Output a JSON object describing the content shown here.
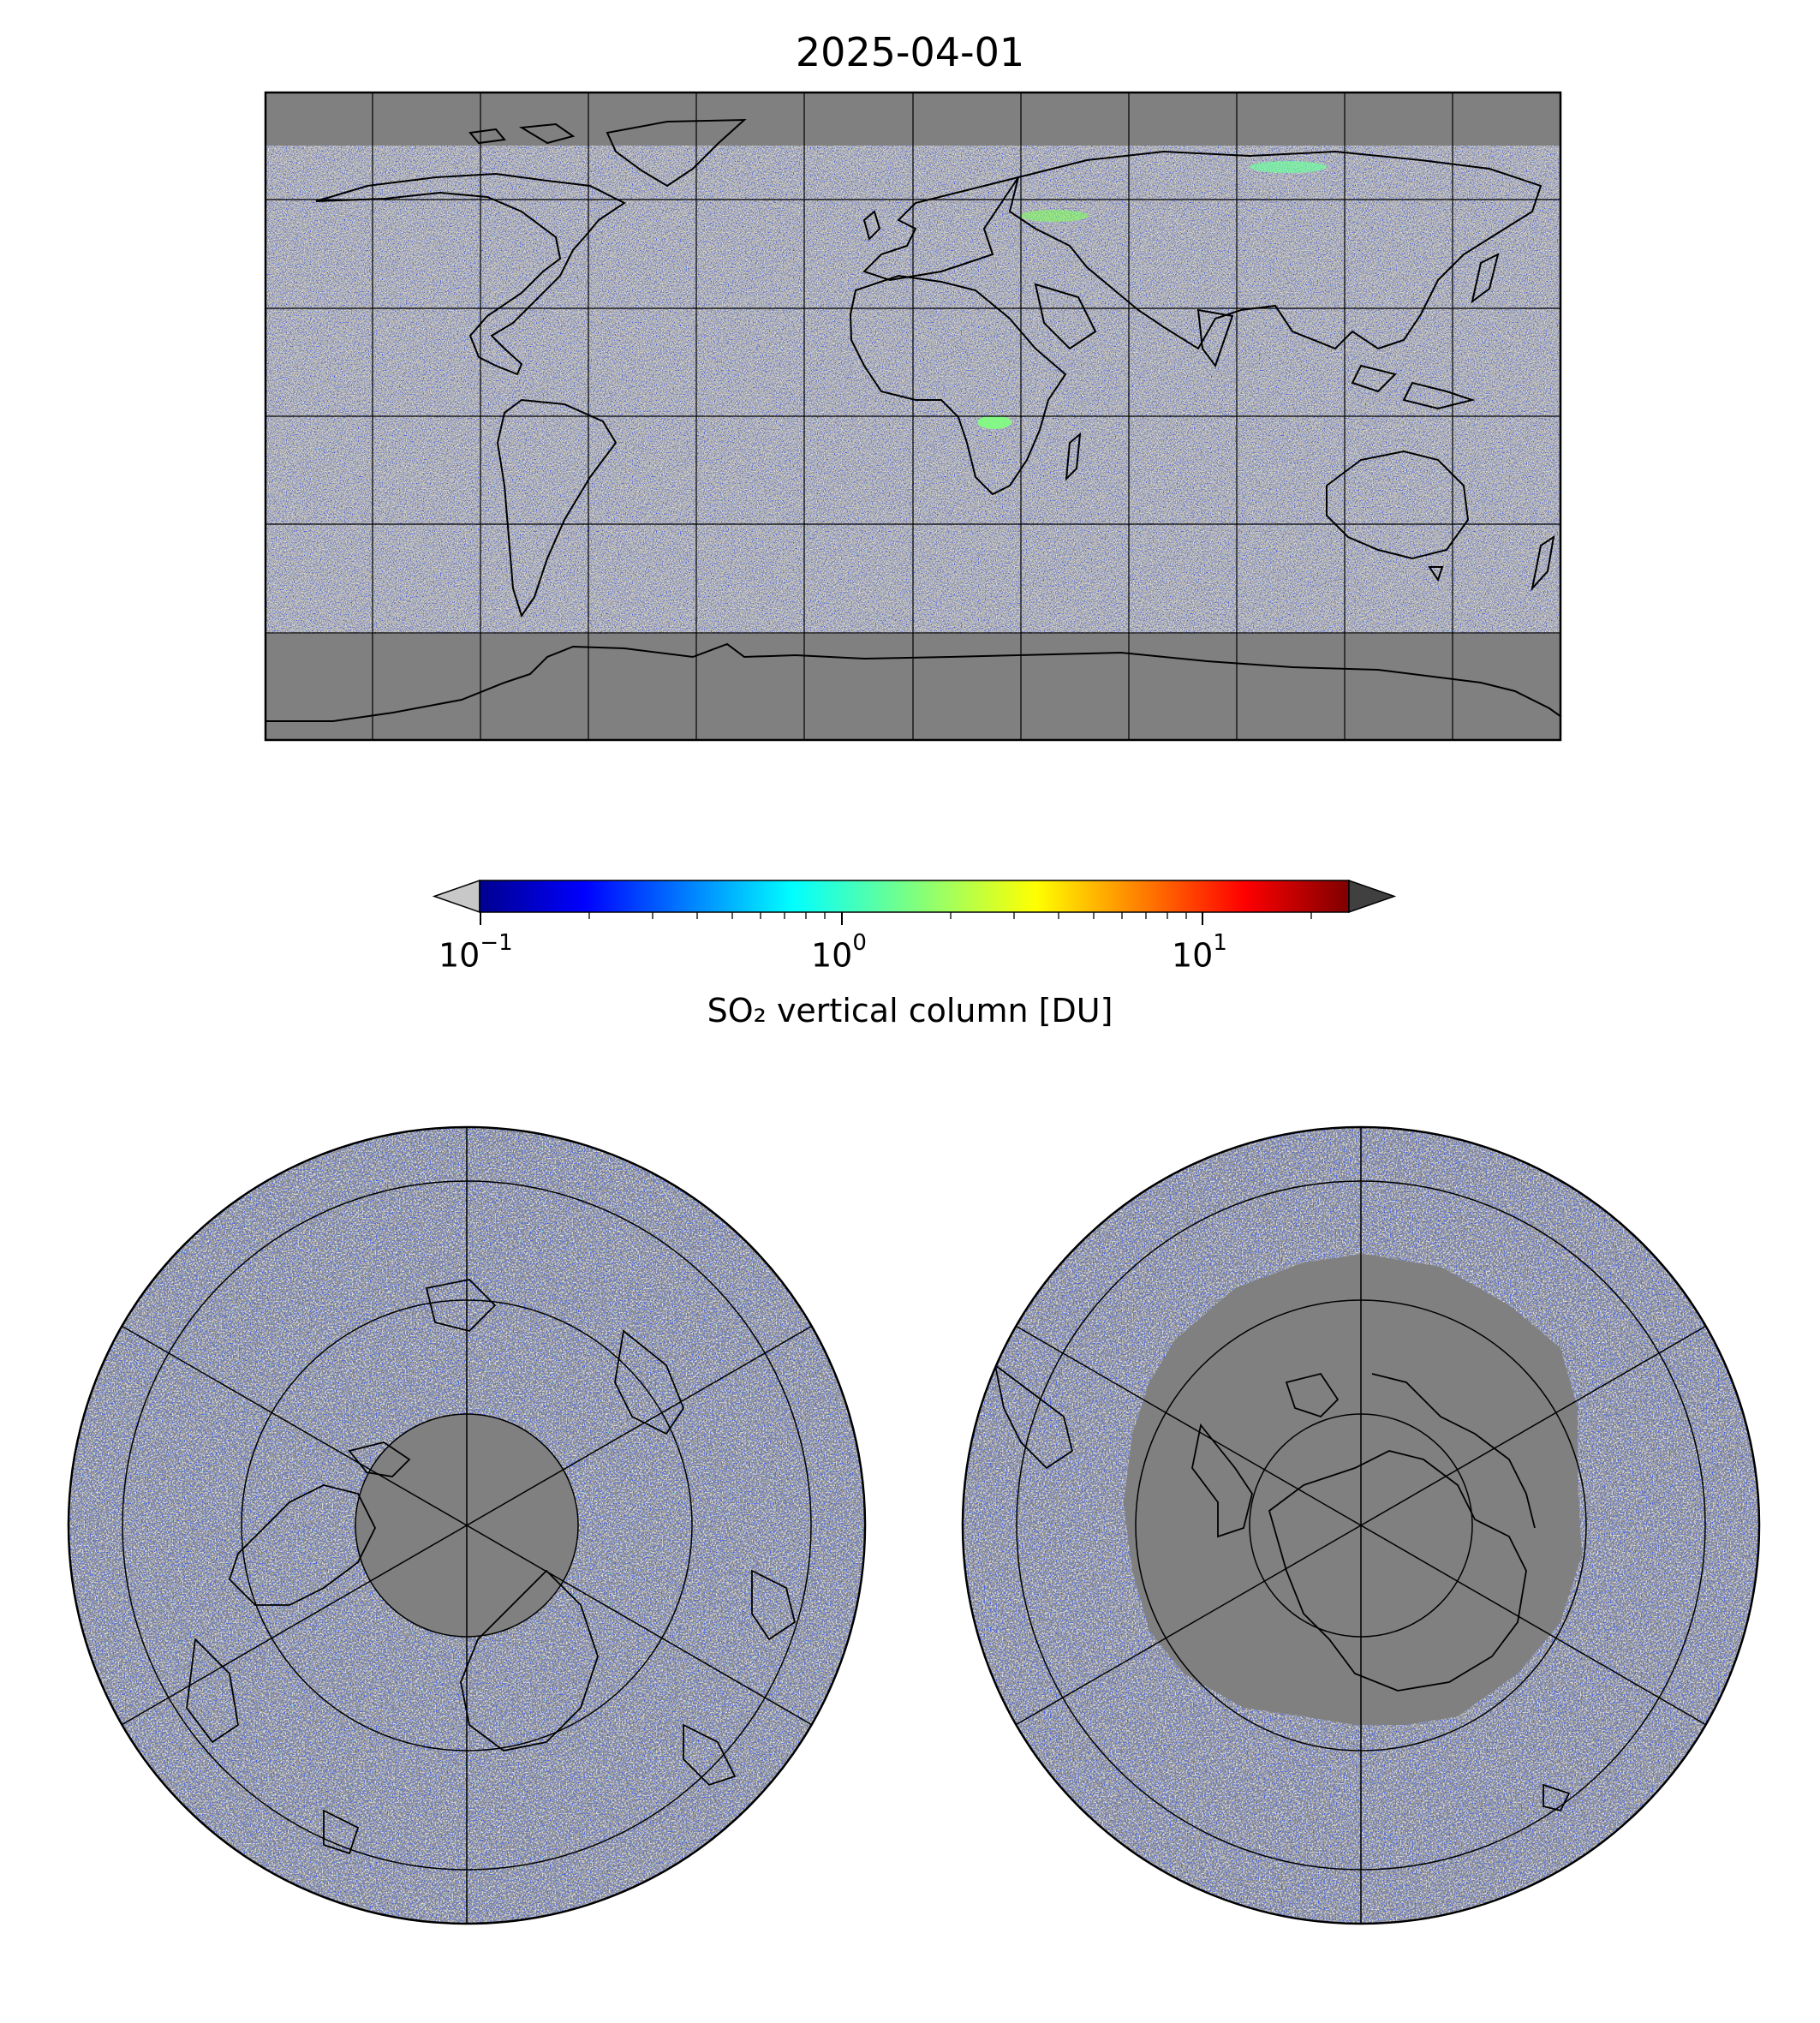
{
  "title": "2025-04-01",
  "colors": {
    "no_data": "#808080",
    "background_retrieval": "#b4b4b4",
    "land_outline": "#000000",
    "colormap": "jet",
    "under": "#c8c8c8",
    "over": "#404040"
  },
  "colorbar": {
    "label": "SO₂ vertical column [DU]",
    "scale": "log",
    "range": [
      0.1,
      25
    ],
    "extend": "both",
    "ticks": [
      {
        "base": "10",
        "exp": "−1"
      },
      {
        "base": "10",
        "exp": "0"
      },
      {
        "base": "10",
        "exp": "1"
      }
    ]
  },
  "maps": [
    {
      "projection": "plate-carree",
      "extent": "global",
      "graticule_deg": 30
    },
    {
      "projection": "north-polar-stereographic",
      "graticule_deg": 30
    },
    {
      "projection": "south-polar-stereographic",
      "graticule_deg": 30
    }
  ]
}
